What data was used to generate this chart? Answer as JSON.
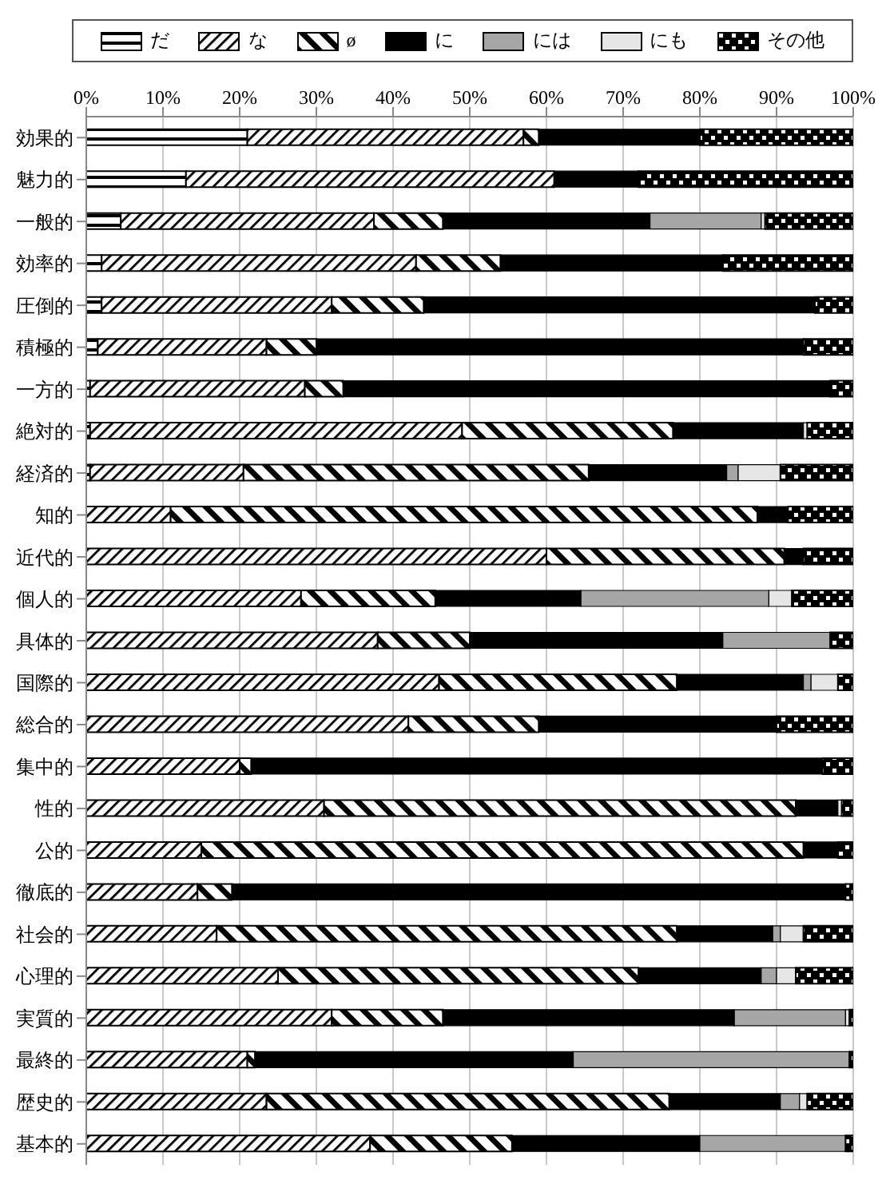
{
  "chart_data": {
    "type": "bar",
    "orientation": "horizontal",
    "stacked": true,
    "grid": "x",
    "legend": "top",
    "categories": [
      "効果的",
      "魅力的",
      "一般的",
      "効率的",
      "圧倒的",
      "積極的",
      "一方的",
      "絶対的",
      "経済的",
      "知的",
      "近代的",
      "個人的",
      "具体的",
      "国際的",
      "総合的",
      "集中的",
      "性的",
      "公的",
      "徹底的",
      "社会的",
      "心理的",
      "実質的",
      "最終的",
      "歴史的",
      "基本的"
    ],
    "xlim": [
      0,
      100
    ],
    "xticks": [
      {
        "value": 0,
        "label": "0%"
      },
      {
        "value": 10,
        "label": "10%"
      },
      {
        "value": 20,
        "label": "20%"
      },
      {
        "value": 30,
        "label": "30%"
      },
      {
        "value": 40,
        "label": "40%"
      },
      {
        "value": 50,
        "label": "50%"
      },
      {
        "value": 60,
        "label": "60%"
      },
      {
        "value": 70,
        "label": "70%"
      },
      {
        "value": 80,
        "label": "80%"
      },
      {
        "value": 90,
        "label": "90%"
      },
      {
        "value": 100,
        "label": "100%"
      }
    ],
    "series": [
      {
        "name": "だ",
        "color": "#000000",
        "values": [
          21,
          13,
          4.5,
          2,
          2,
          1.5,
          0.5,
          0.5,
          0.5,
          0,
          0,
          0,
          0,
          0,
          0,
          0,
          0,
          0,
          0,
          0,
          0,
          0,
          0,
          0,
          0
        ]
      },
      {
        "name": "な",
        "color": "#000000",
        "values": [
          36,
          48,
          33,
          41,
          30,
          22,
          28,
          48.5,
          20,
          11,
          60,
          28,
          38,
          46,
          42,
          20,
          31,
          15,
          14.5,
          17,
          25,
          32,
          21,
          23.5,
          37
        ]
      },
      {
        "name": "ø",
        "color": "#000000",
        "values": [
          2,
          0,
          9,
          11,
          12,
          6.5,
          5,
          27.5,
          45,
          76.5,
          31,
          17.5,
          12,
          31,
          17,
          1.5,
          61.5,
          78.5,
          4.5,
          60,
          47,
          14.5,
          1,
          52.5,
          18.5
        ]
      },
      {
        "name": "に",
        "color": "#000000",
        "values": [
          21,
          11,
          27,
          29,
          51,
          63.5,
          63.5,
          17,
          18,
          4,
          2.5,
          19,
          33,
          16.5,
          31,
          74.5,
          5.5,
          4.5,
          80,
          12.5,
          16,
          38,
          41.5,
          14.5,
          24.5
        ]
      },
      {
        "name": "には",
        "color": "#a6a6a6",
        "values": [
          0,
          0,
          14.5,
          0,
          0,
          0,
          0,
          0,
          1.5,
          0,
          0,
          24.5,
          14,
          1,
          0,
          0,
          0,
          0,
          0,
          1,
          2,
          14.5,
          36,
          2.5,
          19
        ]
      },
      {
        "name": "にも",
        "color": "#e6e6e6",
        "values": [
          0,
          0,
          0.5,
          0,
          0,
          0,
          0,
          0.5,
          5.5,
          0,
          0,
          3,
          0,
          3.5,
          0,
          0,
          0.5,
          0,
          0,
          3,
          2.5,
          0.5,
          0,
          1,
          0
        ]
      },
      {
        "name": "その他",
        "color": "#000000",
        "values": [
          20,
          28,
          11.5,
          17,
          5,
          6.5,
          3,
          6,
          9.5,
          8.5,
          6.5,
          8,
          3,
          2,
          10,
          4,
          1.5,
          2,
          1,
          6.5,
          7.5,
          0.5,
          0.5,
          6,
          1
        ]
      }
    ]
  }
}
